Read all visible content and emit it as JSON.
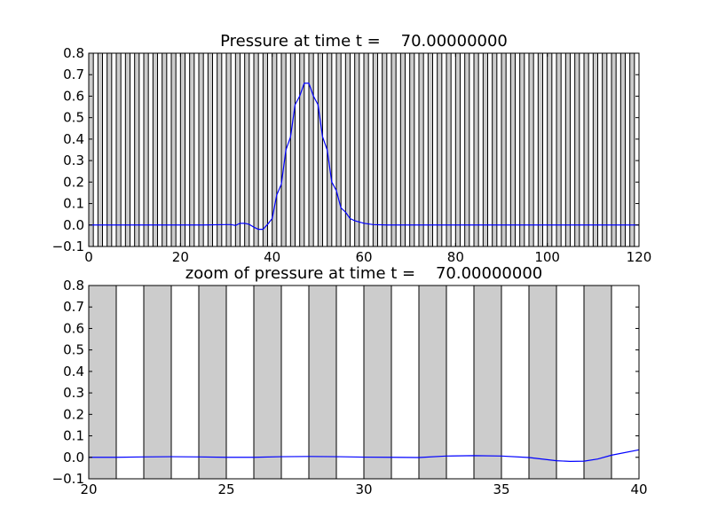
{
  "chart_data": [
    {
      "type": "line",
      "title": "Pressure at time t =    70.00000000",
      "xlabel": "",
      "ylabel": "",
      "xlim": [
        0,
        120
      ],
      "ylim": [
        -0.1,
        0.8
      ],
      "xticks": [
        0,
        20,
        40,
        60,
        80,
        100,
        120
      ],
      "yticks": [
        -0.1,
        0.0,
        0.1,
        0.2,
        0.3,
        0.4,
        0.5,
        0.6,
        0.7,
        0.8
      ],
      "ytick_labels": [
        "−0.1",
        "0.0",
        "0.1",
        "0.2",
        "0.3",
        "0.4",
        "0.5",
        "0.6",
        "0.7",
        "0.8"
      ],
      "grid": false,
      "background_bands": {
        "start": 0,
        "end": 120,
        "period": 2,
        "width": 1,
        "fill": "#cccccc",
        "stroke": "#000000"
      },
      "series": [
        {
          "color": "#0000ff",
          "x": [
            0,
            10,
            20,
            25,
            30,
            31,
            32,
            33,
            34,
            35,
            36,
            37,
            38,
            39,
            40,
            41,
            42,
            43,
            44,
            45,
            46,
            47,
            48,
            49,
            50,
            51,
            52,
            53,
            54,
            55,
            56,
            57,
            58,
            60,
            62,
            65,
            70,
            80,
            90,
            100,
            110,
            120
          ],
          "y": [
            0.0,
            0.0,
            0.0,
            0.0,
            0.002,
            0.002,
            -0.002,
            0.008,
            0.008,
            0.003,
            -0.01,
            -0.02,
            -0.02,
            0.003,
            0.03,
            0.14,
            0.19,
            0.35,
            0.41,
            0.56,
            0.6,
            0.66,
            0.66,
            0.6,
            0.56,
            0.41,
            0.35,
            0.2,
            0.16,
            0.08,
            0.06,
            0.03,
            0.02,
            0.008,
            0.002,
            0.0,
            0.0,
            0.0,
            0.0,
            0.0,
            0.0,
            0.0
          ]
        }
      ]
    },
    {
      "type": "line",
      "title": "zoom of pressure at time t =    70.00000000",
      "xlabel": "",
      "ylabel": "",
      "xlim": [
        20,
        40
      ],
      "ylim": [
        -0.1,
        0.8
      ],
      "xticks": [
        20,
        25,
        30,
        35,
        40
      ],
      "yticks": [
        -0.1,
        0.0,
        0.1,
        0.2,
        0.3,
        0.4,
        0.5,
        0.6,
        0.7,
        0.8
      ],
      "ytick_labels": [
        "−0.1",
        "0.0",
        "0.1",
        "0.2",
        "0.3",
        "0.4",
        "0.5",
        "0.6",
        "0.7",
        "0.8"
      ],
      "grid": false,
      "background_bands": {
        "start": 20,
        "end": 40,
        "period": 2,
        "width": 1,
        "fill": "#cccccc",
        "stroke": "#000000"
      },
      "series": [
        {
          "color": "#0000ff",
          "x": [
            20,
            21,
            22,
            23,
            24,
            25,
            26,
            27,
            28,
            29,
            30,
            31,
            32,
            33,
            34,
            35,
            36,
            37,
            37.5,
            38,
            38.5,
            39,
            40
          ],
          "y": [
            0.0,
            0.0,
            0.002,
            0.003,
            0.002,
            0.0,
            0.0,
            0.003,
            0.004,
            0.003,
            0.001,
            0.0,
            -0.001,
            0.006,
            0.008,
            0.006,
            -0.001,
            -0.016,
            -0.019,
            -0.018,
            -0.008,
            0.01,
            0.035
          ]
        }
      ]
    }
  ]
}
